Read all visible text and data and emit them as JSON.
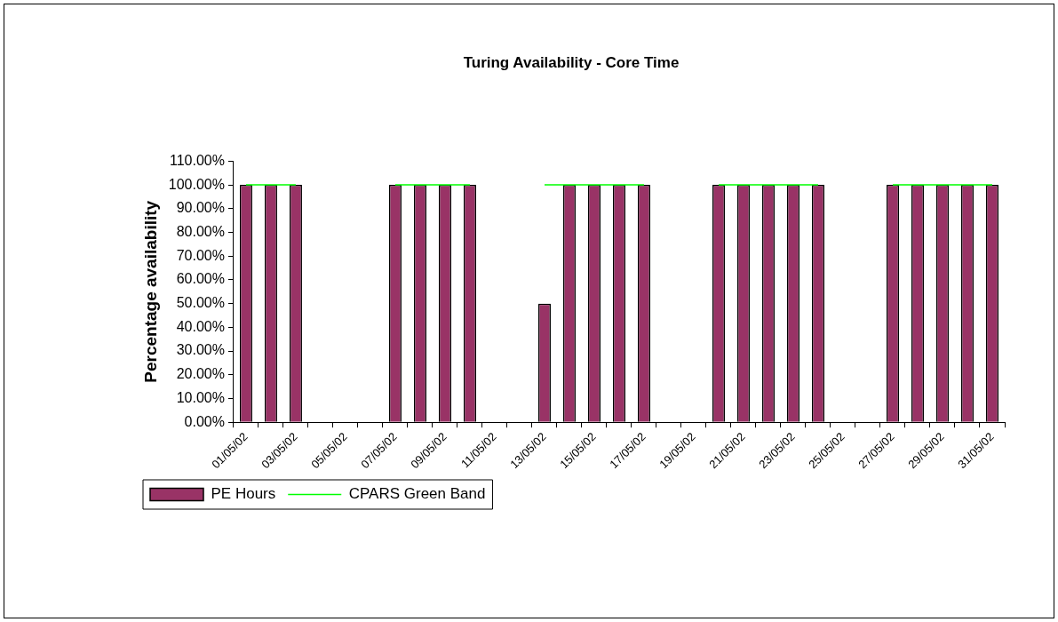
{
  "chart_data": {
    "type": "bar",
    "title": "Turing Availability - Core Time",
    "ylabel": "Percentage availability",
    "categories": [
      "01/05/02",
      null,
      "03/05/02",
      null,
      "05/05/02",
      null,
      "07/05/02",
      null,
      "09/05/02",
      null,
      "11/05/02",
      null,
      "13/05/02",
      null,
      "15/05/02",
      null,
      "17/05/02",
      null,
      "19/05/02",
      null,
      "21/05/02",
      null,
      "23/05/02",
      null,
      "25/05/02",
      null,
      "27/05/02",
      null,
      "29/05/02",
      null,
      "31/05/02"
    ],
    "series": [
      {
        "name": "PE Hours",
        "color": "#993366",
        "values": [
          100,
          100,
          100,
          null,
          null,
          null,
          100,
          100,
          100,
          100,
          null,
          null,
          50,
          100,
          100,
          100,
          100,
          null,
          null,
          100,
          100,
          100,
          100,
          100,
          null,
          null,
          100,
          100,
          100,
          100,
          100
        ]
      },
      {
        "name": "CPARS Green Band",
        "type": "line",
        "color": "#00ff00",
        "values": [
          100,
          100,
          100,
          null,
          null,
          null,
          100,
          100,
          100,
          100,
          null,
          null,
          100,
          100,
          100,
          100,
          100,
          null,
          null,
          100,
          100,
          100,
          100,
          100,
          null,
          null,
          100,
          100,
          100,
          100,
          100
        ]
      }
    ],
    "ylim": [
      0,
      110
    ],
    "yticks": [
      {
        "value": 0,
        "label": "0.00%"
      },
      {
        "value": 10,
        "label": "10.00%"
      },
      {
        "value": 20,
        "label": "20.00%"
      },
      {
        "value": 30,
        "label": "30.00%"
      },
      {
        "value": 40,
        "label": "40.00%"
      },
      {
        "value": 50,
        "label": "50.00%"
      },
      {
        "value": 60,
        "label": "60.00%"
      },
      {
        "value": 70,
        "label": "70.00%"
      },
      {
        "value": 80,
        "label": "80.00%"
      },
      {
        "value": 90,
        "label": "90.00%"
      },
      {
        "value": 100,
        "label": "100.00%"
      },
      {
        "value": 110,
        "label": "110.00%"
      }
    ],
    "grid": false,
    "legend": "bottom",
    "marker": "none",
    "line_style": "solid"
  }
}
